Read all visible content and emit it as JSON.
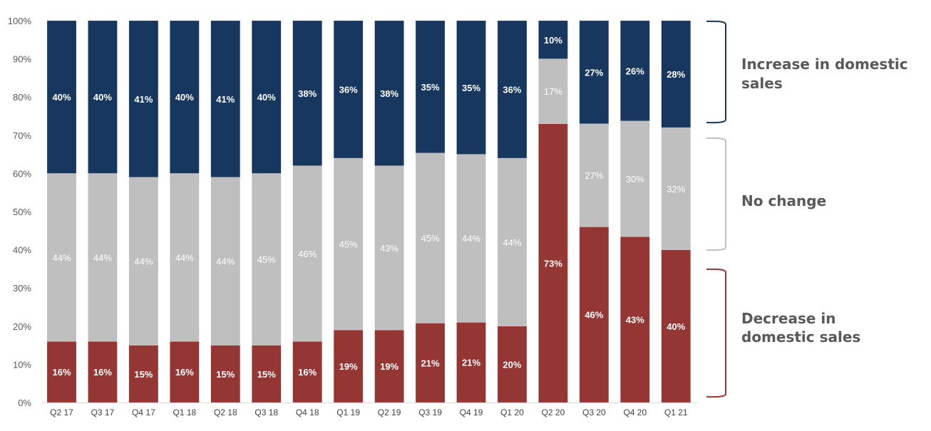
{
  "chart_data": {
    "type": "bar",
    "stacked": true,
    "title": "",
    "xlabel": "",
    "ylabel": "",
    "ylim": [
      0,
      100
    ],
    "yticks": [
      "0%",
      "10%",
      "20%",
      "30%",
      "40%",
      "50%",
      "60%",
      "70%",
      "80%",
      "90%",
      "100%"
    ],
    "grid": false,
    "categories": [
      "Q2 17",
      "Q3 17",
      "Q4 17",
      "Q1 18",
      "Q2 18",
      "Q3 18",
      "Q4 18",
      "Q1 19",
      "Q2 19",
      "Q3 19",
      "Q4 19",
      "Q1 20",
      "Q2 20",
      "Q3 20",
      "Q4 20",
      "Q1 21"
    ],
    "series": [
      {
        "name": "Decrease in domestic sales",
        "color": "#943634",
        "values": [
          16,
          16,
          15,
          16,
          15,
          15,
          16,
          19,
          19,
          21,
          21,
          20,
          73,
          46,
          43,
          40
        ]
      },
      {
        "name": "No change",
        "color": "#BFBFBF",
        "values": [
          44,
          44,
          44,
          44,
          44,
          45,
          46,
          45,
          43,
          45,
          44,
          44,
          17,
          27,
          30,
          32
        ]
      },
      {
        "name": "Increase in domestic sales",
        "color": "#17375E",
        "values": [
          40,
          40,
          41,
          40,
          41,
          40,
          38,
          36,
          38,
          35,
          35,
          36,
          10,
          27,
          26,
          28
        ]
      }
    ],
    "legend": {
      "placement": "right",
      "style": "brackets",
      "entries": [
        {
          "lines": [
            "Increase in domestic",
            "sales"
          ],
          "color": "#17375E"
        },
        {
          "lines": [
            "No change"
          ],
          "color": "#BFBFBF"
        },
        {
          "lines": [
            "Decrease in",
            "domestic sales"
          ],
          "color": "#943634"
        }
      ]
    }
  }
}
